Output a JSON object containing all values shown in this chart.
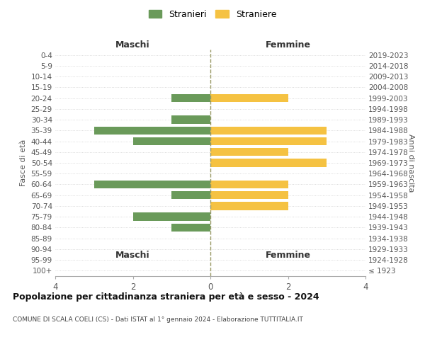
{
  "age_groups": [
    "100+",
    "95-99",
    "90-94",
    "85-89",
    "80-84",
    "75-79",
    "70-74",
    "65-69",
    "60-64",
    "55-59",
    "50-54",
    "45-49",
    "40-44",
    "35-39",
    "30-34",
    "25-29",
    "20-24",
    "15-19",
    "10-14",
    "5-9",
    "0-4"
  ],
  "birth_years": [
    "≤ 1923",
    "1924-1928",
    "1929-1933",
    "1934-1938",
    "1939-1943",
    "1944-1948",
    "1949-1953",
    "1954-1958",
    "1959-1963",
    "1964-1968",
    "1969-1973",
    "1974-1978",
    "1979-1983",
    "1984-1988",
    "1989-1993",
    "1994-1998",
    "1999-2003",
    "2004-2008",
    "2009-2013",
    "2014-2018",
    "2019-2023"
  ],
  "maschi": [
    0,
    0,
    0,
    0,
    1,
    2,
    0,
    1,
    3,
    0,
    0,
    0,
    2,
    3,
    1,
    0,
    1,
    0,
    0,
    0,
    0
  ],
  "femmine": [
    0,
    0,
    0,
    0,
    0,
    0,
    2,
    2,
    2,
    0,
    3,
    2,
    3,
    3,
    0,
    0,
    2,
    0,
    0,
    0,
    0
  ],
  "color_maschi": "#6a9a5a",
  "color_femmine": "#f5c242",
  "title_main": "Popolazione per cittadinanza straniera per età e sesso - 2024",
  "title_sub": "COMUNE DI SCALA COELI (CS) - Dati ISTAT al 1° gennaio 2024 - Elaborazione TUTTITALIA.IT",
  "label_maschi": "Stranieri",
  "label_femmine": "Straniere",
  "xlabel_left": "Maschi",
  "xlabel_right": "Femmine",
  "ylabel_left": "Fasce di età",
  "ylabel_right": "Anni di nascita",
  "xlim": 4,
  "background_color": "#ffffff",
  "grid_color": "#d0d0d0"
}
